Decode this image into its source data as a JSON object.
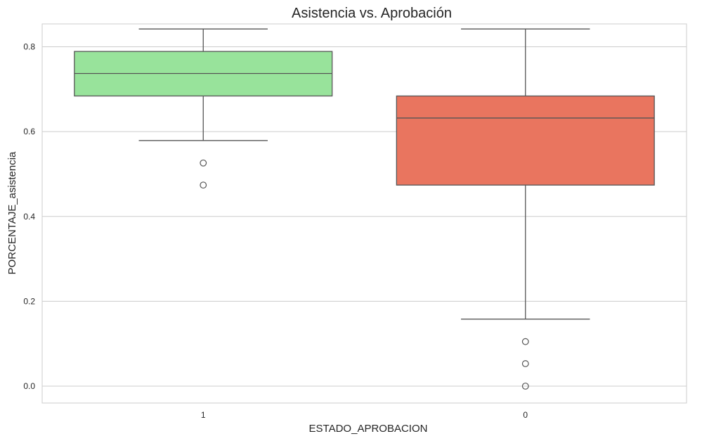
{
  "chart_data": {
    "type": "boxplot",
    "title": "Asistencia vs. Aprobación",
    "xlabel": "ESTADO_APROBACION",
    "ylabel": "PORCENTAJE_asistencia",
    "ylim": [
      -0.04,
      0.885
    ],
    "yticks": [
      0.0,
      0.2,
      0.4,
      0.6,
      0.8
    ],
    "ytick_labels": [
      "0.0",
      "0.2",
      "0.4",
      "0.6",
      "0.8"
    ],
    "grid": "horizontal",
    "categories": [
      "1",
      "0"
    ],
    "boxes": [
      {
        "category": "1",
        "color": "#98e39b",
        "whisker_low": 0.579,
        "q1": 0.684,
        "median": 0.737,
        "q3": 0.789,
        "whisker_high": 0.842,
        "outliers": [
          0.526,
          0.474
        ]
      },
      {
        "category": "0",
        "color": "#e9755f",
        "whisker_low": 0.158,
        "q1": 0.474,
        "median": 0.632,
        "q3": 0.684,
        "whisker_high": 0.842,
        "outliers": [
          0.105,
          0.053,
          0.0
        ]
      }
    ]
  }
}
